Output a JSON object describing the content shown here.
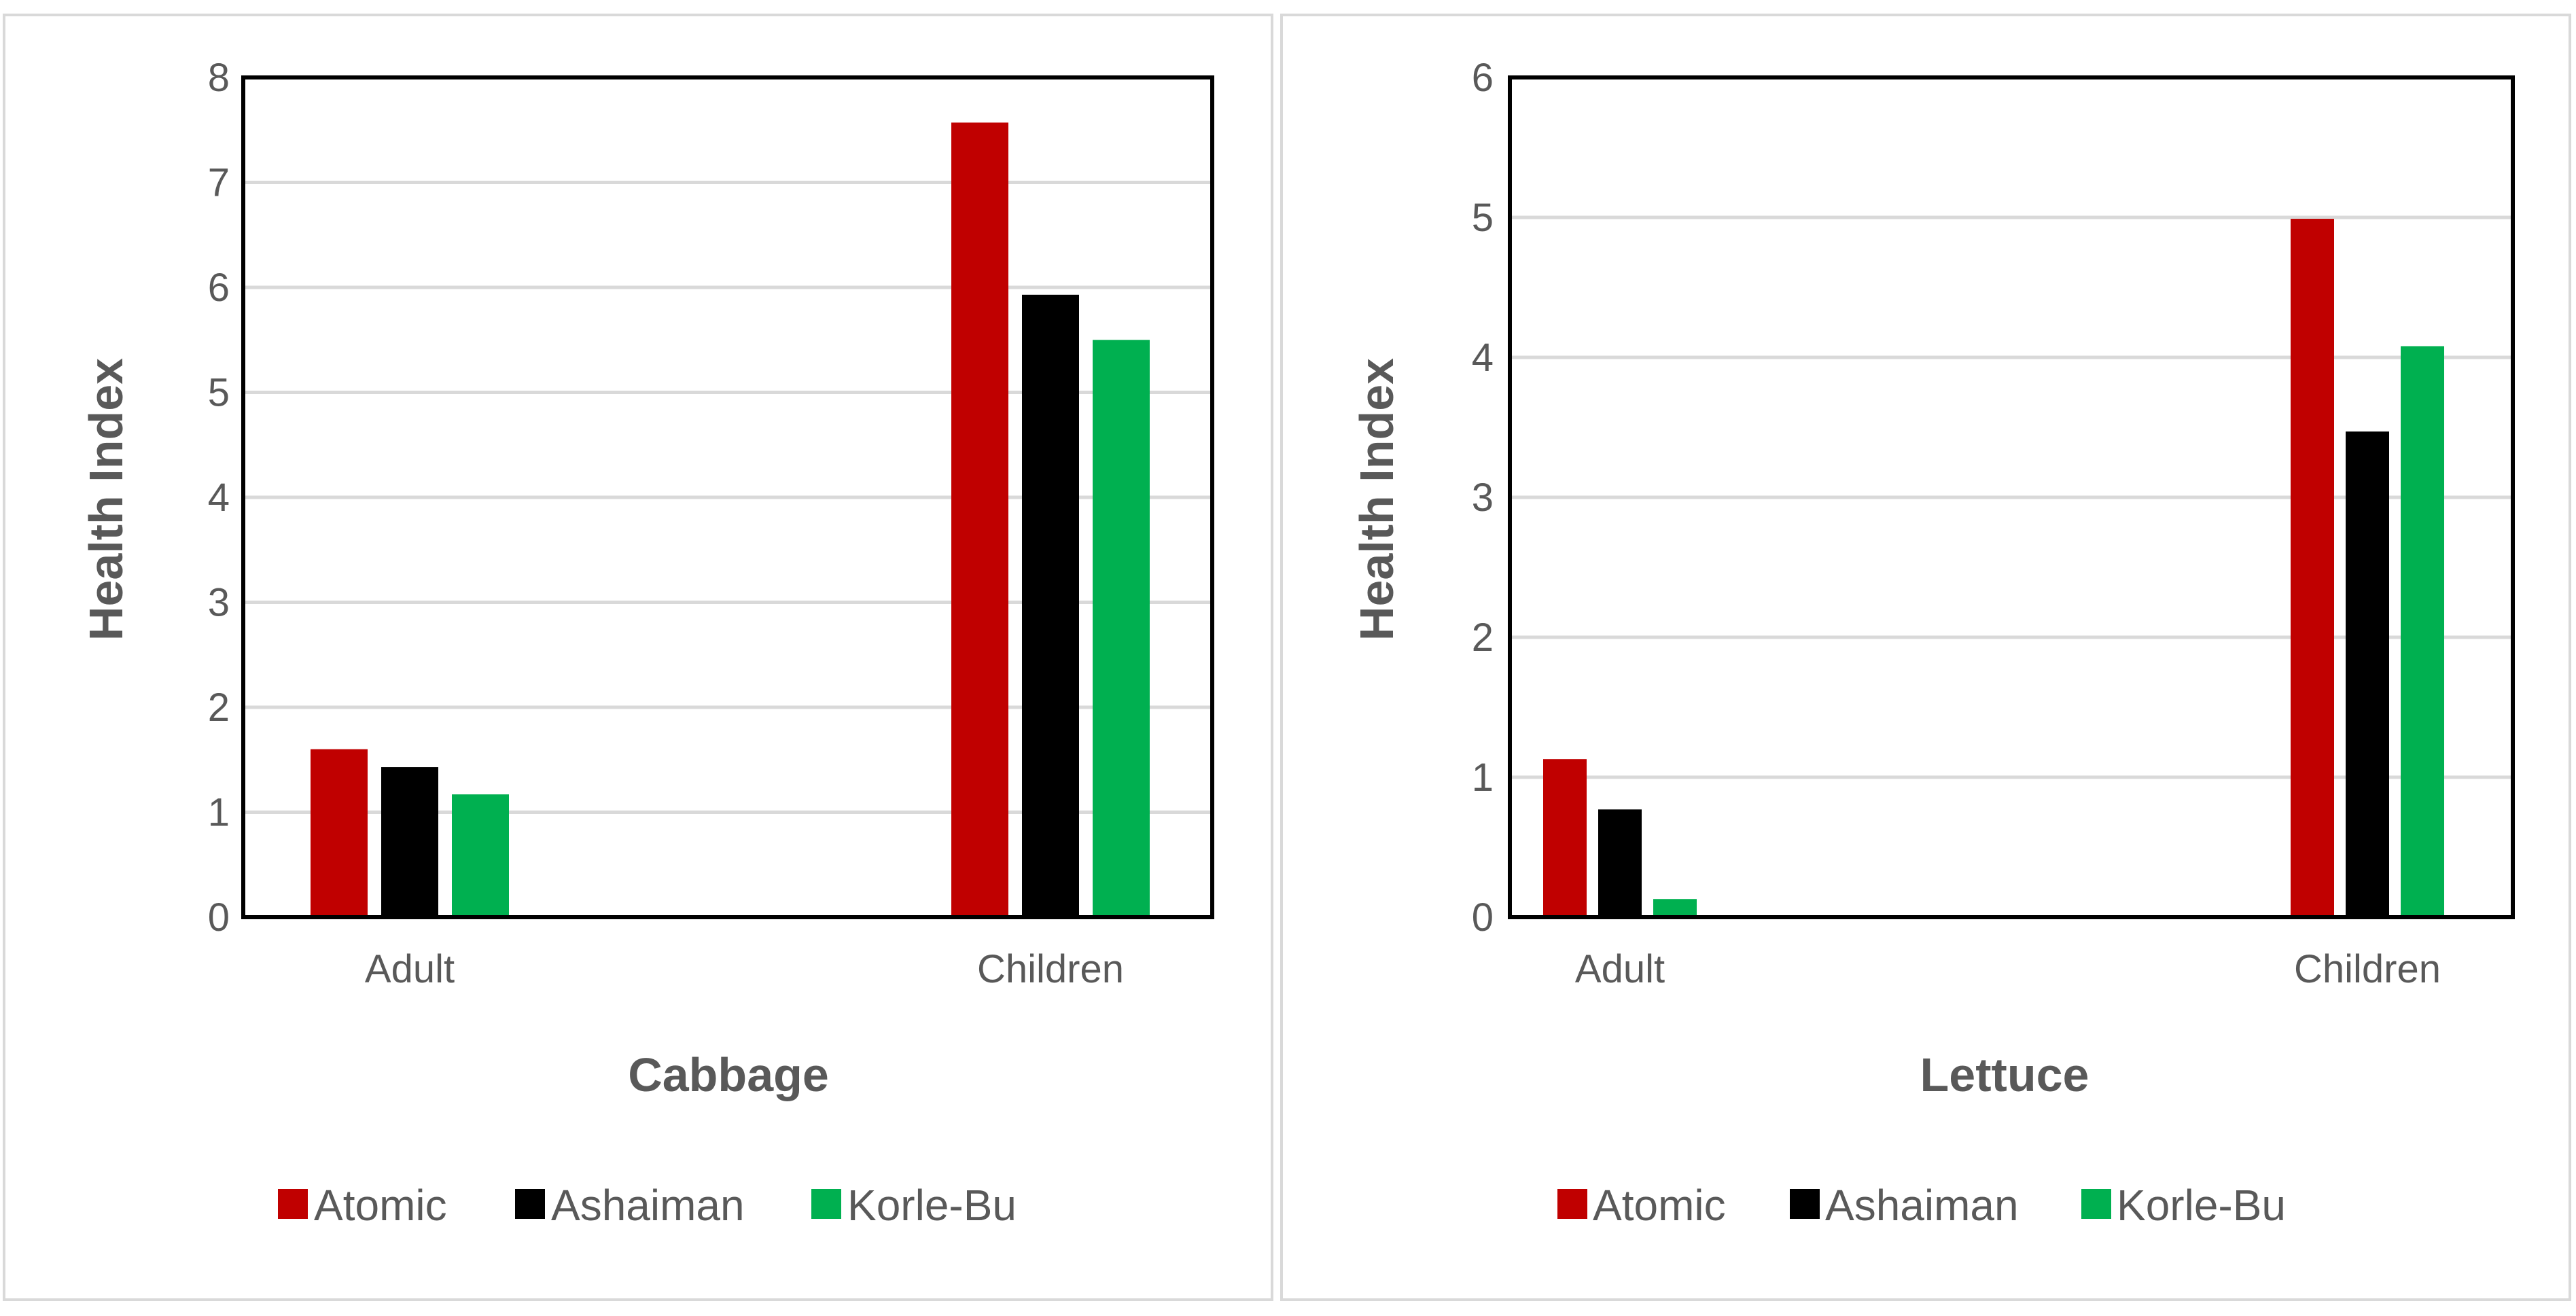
{
  "colors": {
    "atomic": "#c00000",
    "ashaiman": "#000000",
    "korle_bu": "#00b050",
    "gridline": "#d9d9d9",
    "text": "#595959"
  },
  "chart_data": [
    {
      "type": "bar",
      "categories": [
        "Adult",
        "Children"
      ],
      "xlabel": "Cabbage",
      "ylabel": "Health Index",
      "ylim": [
        0,
        8
      ],
      "yticks": [
        0,
        1,
        2,
        3,
        4,
        5,
        6,
        7,
        8
      ],
      "grid": true,
      "legend_position": "bottom",
      "series": [
        {
          "name": "Atomic",
          "values": [
            1.6,
            7.57
          ]
        },
        {
          "name": "Ashaiman",
          "values": [
            1.43,
            5.93
          ]
        },
        {
          "name": "Korle-Bu",
          "values": [
            1.17,
            5.5
          ]
        }
      ]
    },
    {
      "type": "bar",
      "categories": [
        "Adult",
        "Children"
      ],
      "xlabel": "Lettuce",
      "ylabel": "Health Index",
      "ylim": [
        0,
        6
      ],
      "yticks": [
        0,
        1,
        2,
        3,
        4,
        5,
        6
      ],
      "grid": true,
      "legend_position": "bottom",
      "series": [
        {
          "name": "Atomic",
          "values": [
            1.13,
            4.99
          ]
        },
        {
          "name": "Ashaiman",
          "values": [
            0.77,
            3.47
          ]
        },
        {
          "name": "Korle-Bu",
          "values": [
            0.13,
            4.08
          ]
        }
      ]
    }
  ]
}
